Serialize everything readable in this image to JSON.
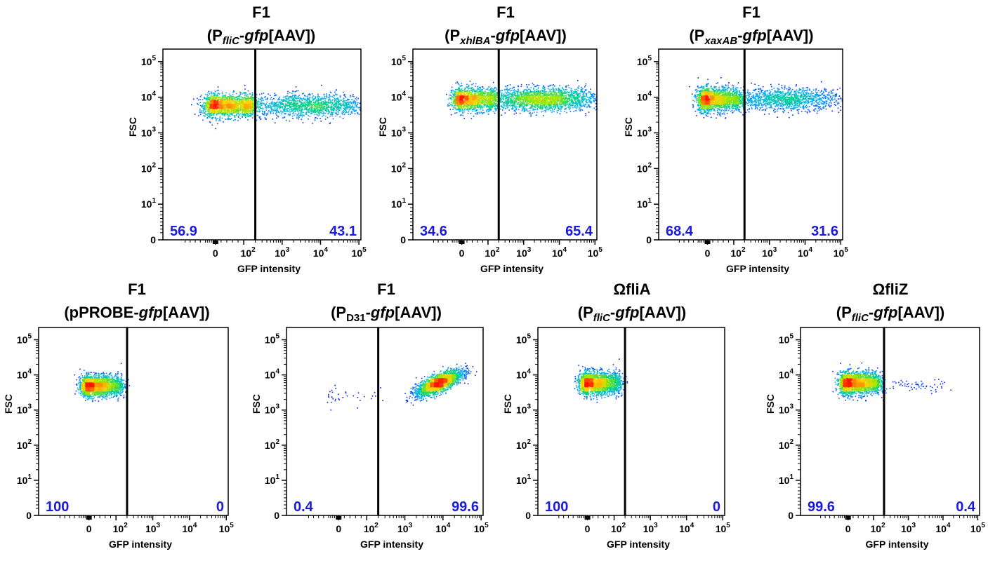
{
  "chart_data": [
    {
      "type": "scatter",
      "title": [
        "F1",
        "(P",
        "fliC",
        "-",
        "gfp",
        "[AAV])"
      ],
      "xlabel": "GFP intensity",
      "ylabel": "FSC",
      "x_ticks": [
        "0",
        "10^2",
        "10^3",
        "10^4",
        "10^5"
      ],
      "y_ticks": [
        "0",
        "10^1",
        "10^2",
        "10^3",
        "10^4",
        "10^5"
      ],
      "gate_x": 200,
      "left_percent": "56.9",
      "right_percent": "43.1",
      "populations": [
        {
          "center": [
            40,
            6000
          ],
          "spread": [
            0.25,
            0.16
          ],
          "count": 1800
        },
        {
          "center": [
            5000,
            6000
          ],
          "spread": [
            0.85,
            0.16
          ],
          "count": 1500
        }
      ]
    },
    {
      "type": "scatter",
      "title": [
        "F1",
        "(P",
        "xhlBA",
        "-",
        "gfp",
        "[AAV])"
      ],
      "xlabel": "GFP intensity",
      "ylabel": "FSC",
      "x_ticks": [
        "0",
        "10^2",
        "10^3",
        "10^4",
        "10^5"
      ],
      "y_ticks": [
        "0",
        "10^1",
        "10^2",
        "10^3",
        "10^4",
        "10^5"
      ],
      "gate_x": 200,
      "left_percent": "34.6",
      "right_percent": "65.4",
      "populations": [
        {
          "center": [
            30,
            9000
          ],
          "spread": [
            0.22,
            0.16
          ],
          "count": 1400
        },
        {
          "center": [
            3000,
            9000
          ],
          "spread": [
            0.85,
            0.16
          ],
          "count": 2200
        }
      ]
    },
    {
      "type": "scatter",
      "title": [
        "F1",
        "(P",
        "xaxAB",
        "-",
        "gfp",
        "[AAV])"
      ],
      "xlabel": "GFP intensity",
      "ylabel": "FSC",
      "x_ticks": [
        "0",
        "10^2",
        "10^3",
        "10^4",
        "10^5"
      ],
      "y_ticks": [
        "0",
        "10^1",
        "10^2",
        "10^3",
        "10^4",
        "10^5"
      ],
      "gate_x": 200,
      "left_percent": "68.4",
      "right_percent": "31.6",
      "populations": [
        {
          "center": [
            25,
            9000
          ],
          "spread": [
            0.22,
            0.17
          ],
          "count": 1900
        },
        {
          "center": [
            3000,
            9000
          ],
          "spread": [
            0.8,
            0.15
          ],
          "count": 1300
        }
      ]
    },
    {
      "type": "scatter",
      "title": [
        "F1",
        "(pPROBE-",
        "",
        "",
        "gfp",
        "[AAV])"
      ],
      "xlabel": "GFP intensity",
      "ylabel": "FSC",
      "x_ticks": [
        "0",
        "10^2",
        "10^3",
        "10^4",
        "10^5"
      ],
      "y_ticks": [
        "0",
        "10^1",
        "10^2",
        "10^3",
        "10^4",
        "10^5"
      ],
      "gate_x": 200,
      "left_percent": "100",
      "right_percent": "0",
      "populations": [
        {
          "center": [
            30,
            5000
          ],
          "spread": [
            0.18,
            0.15
          ],
          "count": 2200
        }
      ]
    },
    {
      "type": "scatter",
      "title": [
        "F1",
        "(P",
        "D31",
        "-",
        "gfp",
        "[AAV])"
      ],
      "xlabel": "GFP intensity",
      "ylabel": "FSC",
      "x_ticks": [
        "0",
        "10^2",
        "10^3",
        "10^4",
        "10^5"
      ],
      "y_ticks": [
        "0",
        "10^1",
        "10^2",
        "10^3",
        "10^4",
        "10^5"
      ],
      "gate_x": 200,
      "left_percent": "0.4",
      "right_percent": "99.6",
      "populations": [
        {
          "center": [
            8,
            2800
          ],
          "spread": [
            0.3,
            0.2
          ],
          "count": 35
        },
        {
          "center": [
            7500,
            6000
          ],
          "spread": [
            0.3,
            0.18
          ],
          "count": 2400,
          "correlation": 0.75
        }
      ]
    },
    {
      "type": "scatter",
      "title": [
        "ΩfliA",
        "(P",
        "fliC",
        "-",
        "gfp",
        "[AAV])"
      ],
      "xlabel": "GFP intensity",
      "ylabel": "FSC",
      "x_ticks": [
        "0",
        "10^2",
        "10^3",
        "10^4",
        "10^5"
      ],
      "y_ticks": [
        "0",
        "10^1",
        "10^2",
        "10^3",
        "10^4",
        "10^5"
      ],
      "gate_x": 200,
      "left_percent": "100",
      "right_percent": "0",
      "populations": [
        {
          "center": [
            30,
            6000
          ],
          "spread": [
            0.18,
            0.16
          ],
          "count": 2200
        }
      ]
    },
    {
      "type": "scatter",
      "title": [
        "ΩfliZ",
        "(P",
        "fliC",
        "-",
        "gfp",
        "[AAV])"
      ],
      "xlabel": "GFP intensity",
      "ylabel": "FSC",
      "x_ticks": [
        "0",
        "10^2",
        "10^3",
        "10^4",
        "10^5"
      ],
      "y_ticks": [
        "0",
        "10^1",
        "10^2",
        "10^3",
        "10^4",
        "10^5"
      ],
      "gate_x": 200,
      "left_percent": "99.6",
      "right_percent": "0.4",
      "populations": [
        {
          "center": [
            30,
            6000
          ],
          "spread": [
            0.2,
            0.16
          ],
          "count": 2200
        },
        {
          "center": [
            1500,
            5000
          ],
          "spread": [
            0.45,
            0.1
          ],
          "count": 60
        }
      ]
    }
  ],
  "colors": {
    "percent_text": "#1a1adc",
    "gate": "#000000",
    "density_low": "#0000ff",
    "density_mid": "#00c8a0",
    "density_high": "#ff0000"
  }
}
